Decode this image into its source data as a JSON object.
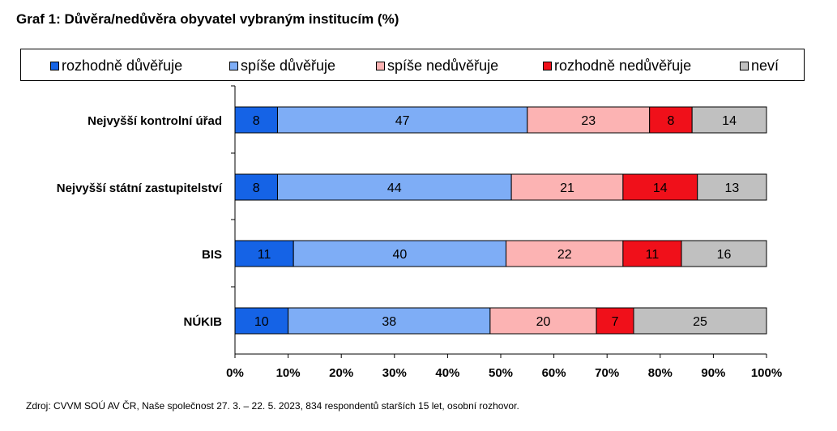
{
  "chart_data": {
    "type": "bar",
    "stacked": true,
    "orientation": "horizontal",
    "title": "Graf 1: Důvěra/nedůvěra obyvatel vybraným institucím (%)",
    "categories": [
      "Nejvyšší kontrolní úřad",
      "Nejvyšší státní zastupitelství",
      "BIS",
      "NÚKIB"
    ],
    "series": [
      {
        "name": "rozhodně důvěřuje",
        "color": "#1563e6",
        "values": [
          8,
          8,
          11,
          10
        ]
      },
      {
        "name": "spíše důvěřuje",
        "color": "#7eadf6",
        "values": [
          47,
          44,
          40,
          38
        ]
      },
      {
        "name": "spíše nedůvěřuje",
        "color": "#fcb3b3",
        "values": [
          23,
          21,
          22,
          20
        ]
      },
      {
        "name": "rozhodně nedůvěřuje",
        "color": "#f0101a",
        "values": [
          8,
          14,
          11,
          7
        ]
      },
      {
        "name": "neví",
        "color": "#c0c0c0",
        "values": [
          14,
          13,
          16,
          25
        ]
      }
    ],
    "xlim": [
      0,
      100
    ],
    "x_ticks": [
      "0%",
      "10%",
      "20%",
      "30%",
      "40%",
      "50%",
      "60%",
      "70%",
      "80%",
      "90%",
      "100%"
    ],
    "legend_position": "top",
    "grid": false
  },
  "source": "Zdroj: CVVM SOÚ AV ČR, Naše společnost 27. 3. – 22. 5. 2023, 834 respondentů starších 15 let, osobní rozhovor."
}
